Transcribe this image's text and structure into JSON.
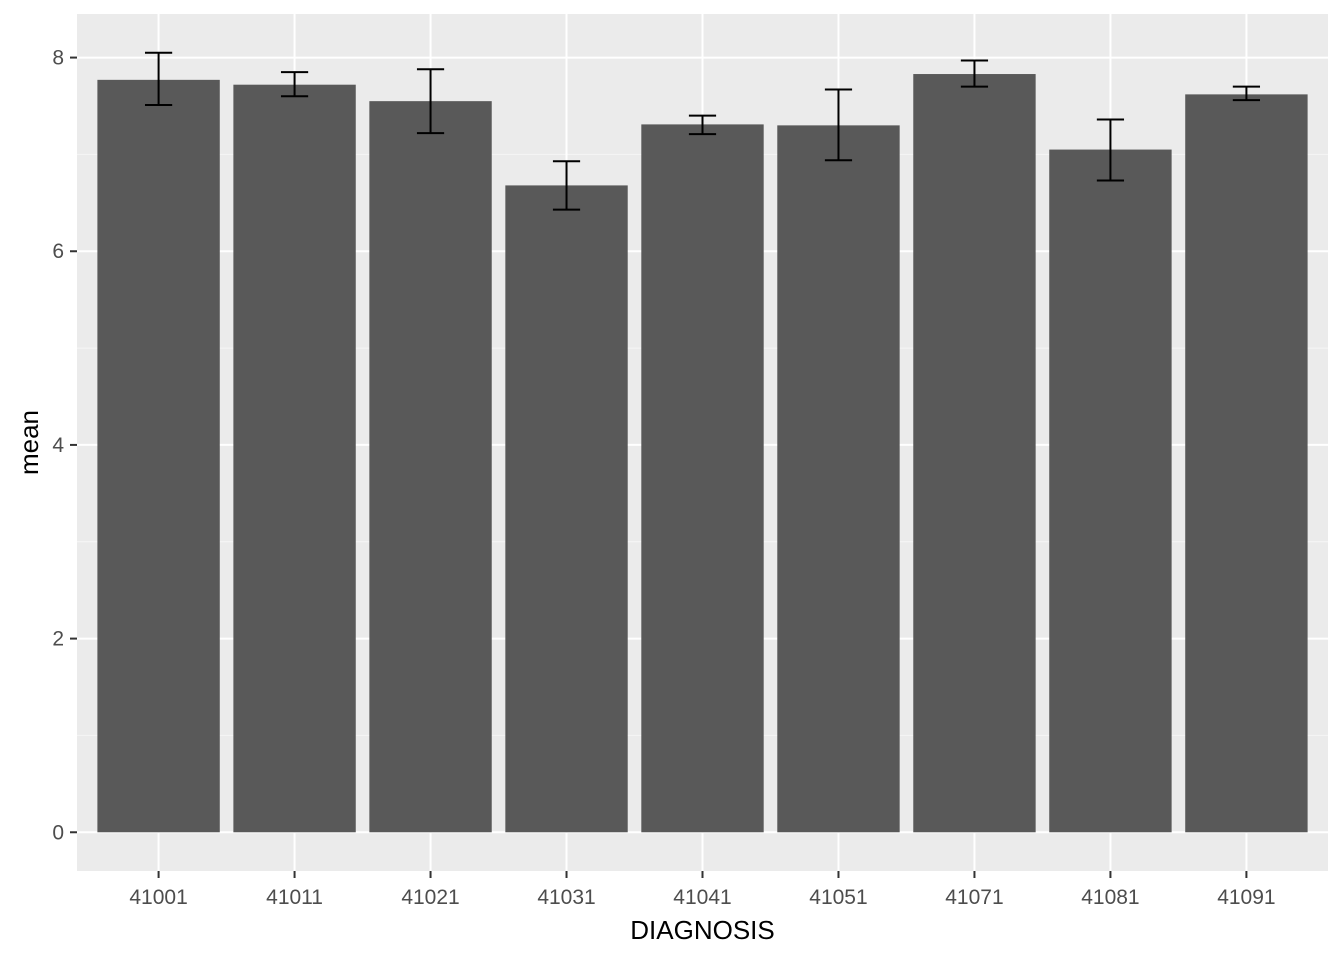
{
  "chart_data": {
    "type": "bar",
    "title": "",
    "xlabel": "DIAGNOSIS",
    "ylabel": "mean",
    "categories": [
      "41001",
      "41011",
      "41021",
      "41031",
      "41041",
      "41051",
      "41071",
      "41081",
      "41091"
    ],
    "values": [
      7.77,
      7.72,
      7.55,
      6.68,
      7.31,
      7.3,
      7.83,
      7.05,
      7.62
    ],
    "error_low": [
      7.51,
      7.6,
      7.22,
      6.43,
      7.21,
      6.94,
      7.7,
      6.73,
      7.56
    ],
    "error_high": [
      8.05,
      7.85,
      7.88,
      6.93,
      7.4,
      7.67,
      7.97,
      7.36,
      7.7
    ],
    "yticks": [
      0,
      2,
      4,
      6,
      8
    ],
    "ylim": [
      -0.4,
      8.45
    ],
    "grid": true,
    "colors": {
      "panel_background": "#ebebeb",
      "grid_major": "#ffffff",
      "grid_minor": "#f5f5f5",
      "bar_fill": "#595959",
      "errorbar": "#000000",
      "tick_label": "#4d4d4d",
      "axis_title": "#000000"
    }
  }
}
